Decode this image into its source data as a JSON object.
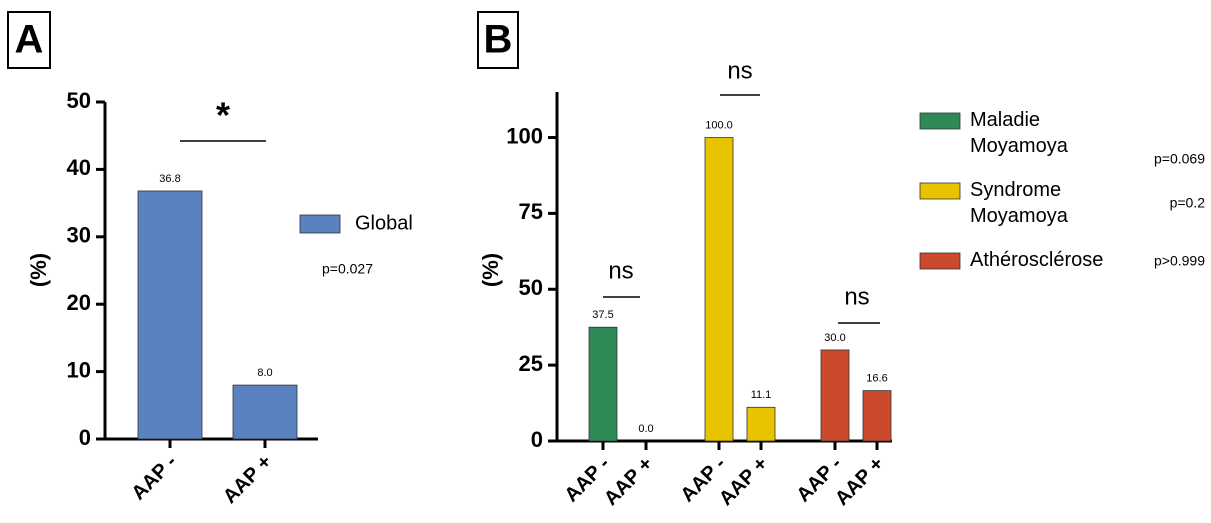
{
  "chart_data": [
    {
      "type": "bar",
      "panel": "A",
      "ylabel": "(%)",
      "categories": [
        "AAP -",
        "AAP +"
      ],
      "series": [
        {
          "name": "Global",
          "color": "#5b82c0",
          "values": [
            36.8,
            8.0
          ],
          "value_labels": [
            "36.8",
            "8.0"
          ],
          "p_label": "p=0.027"
        }
      ],
      "ylim": [
        0,
        50
      ],
      "yticks": [
        0,
        10,
        20,
        30,
        40,
        50
      ],
      "annotations": [
        "*"
      ]
    },
    {
      "type": "bar",
      "panel": "B",
      "ylabel": "(%)",
      "categories": [
        "AAP -",
        "AAP +",
        "AAP -",
        "AAP +",
        "AAP -",
        "AAP +"
      ],
      "series": [
        {
          "name": "Maladie Moyamoya",
          "color": "#2e8b57",
          "values": [
            37.5,
            0.0,
            null,
            null,
            null,
            null
          ],
          "value_labels": [
            "37.5",
            "0.0",
            null,
            null,
            null,
            null
          ],
          "p_label": "p=0.069"
        },
        {
          "name": "Syndrome Moyamoya",
          "color": "#e8c300",
          "values": [
            null,
            null,
            100.0,
            11.1,
            null,
            null
          ],
          "value_labels": [
            null,
            null,
            "100.0",
            "11.1",
            null,
            null
          ],
          "p_label": "p=0.2"
        },
        {
          "name": "Athérosclérose",
          "color": "#cc4a2c",
          "values": [
            null,
            null,
            null,
            null,
            30.0,
            16.6
          ],
          "value_labels": [
            null,
            null,
            null,
            null,
            "30.0",
            "16.6"
          ],
          "p_label": "p>0.999"
        }
      ],
      "ylim": [
        0,
        115
      ],
      "yticks": [
        0,
        25,
        50,
        75,
        100
      ],
      "annotations": [
        "ns",
        "ns",
        "ns"
      ]
    }
  ]
}
